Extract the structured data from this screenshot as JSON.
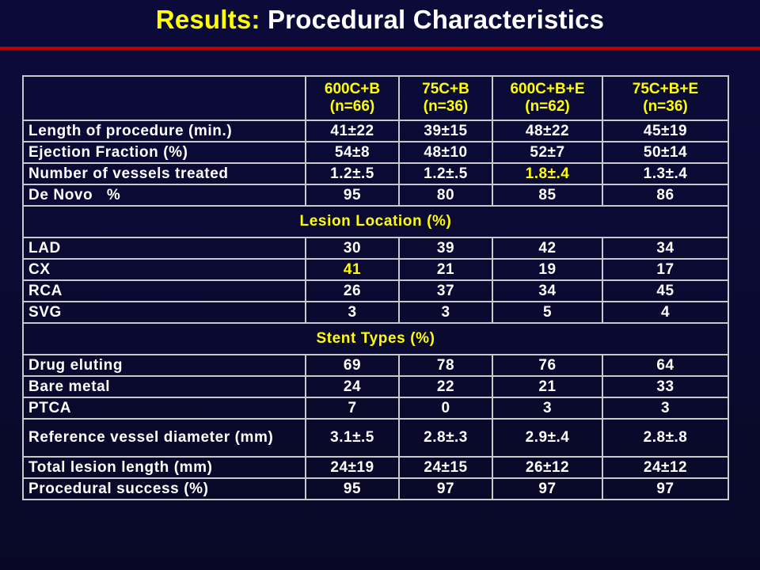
{
  "title": {
    "prefix": "Results:",
    "main": "Procedural Characteristics"
  },
  "colors": {
    "background": "#0a0a30",
    "accent_rule": "#c00000",
    "highlight": "#ffff00",
    "text": "#ffffff",
    "grid": "#c9c9c9"
  },
  "table": {
    "headers": [
      {
        "name": "600C+B",
        "n": "(n=66)"
      },
      {
        "name": "75C+B",
        "n": "(n=36)"
      },
      {
        "name": "600C+B+E",
        "n": "(n=62)"
      },
      {
        "name": "75C+B+E",
        "n": "(n=36)"
      }
    ],
    "group1": [
      {
        "label": "Length of procedure (min.)",
        "values": [
          "41±22",
          "39±15",
          "48±22",
          "45±19"
        ]
      },
      {
        "label": "Ejection Fraction (%)",
        "values": [
          "54±8",
          "48±10",
          "52±7",
          "50±14"
        ]
      },
      {
        "label": "Number of vessels treated",
        "values": [
          "1.2±.5",
          "1.2±.5",
          "1.8±.4",
          "1.3±.4"
        ]
      },
      {
        "label": "De Novo   %",
        "values": [
          "95",
          "80",
          "85",
          "86"
        ]
      }
    ],
    "section_lesion": "Lesion Location (%)",
    "lesion": [
      {
        "label": "LAD",
        "values": [
          "30",
          "39",
          "42",
          "34"
        ]
      },
      {
        "label": "CX",
        "values": [
          "41",
          "21",
          "19",
          "17"
        ]
      },
      {
        "label": "RCA",
        "values": [
          "26",
          "37",
          "34",
          "45"
        ]
      },
      {
        "label": "SVG",
        "values": [
          "3",
          "3",
          "5",
          "4"
        ]
      }
    ],
    "section_stent": "Stent Types (%)",
    "stent": [
      {
        "label": "Drug eluting",
        "values": [
          "69",
          "78",
          "76",
          "64"
        ]
      },
      {
        "label": "Bare metal",
        "values": [
          "24",
          "22",
          "21",
          "33"
        ]
      },
      {
        "label": "PTCA",
        "values": [
          "7",
          "0",
          "3",
          "3"
        ]
      },
      {
        "label": "Reference vessel diameter (mm)",
        "values": [
          "3.1±.5",
          "2.8±.3",
          "2.9±.4",
          "2.8±.8"
        ]
      },
      {
        "label": "Total lesion length (mm)",
        "values": [
          "24±19",
          "24±15",
          "26±12",
          "24±12"
        ]
      },
      {
        "label": "Procedural success (%)",
        "values": [
          "95",
          "97",
          "97",
          "97"
        ]
      }
    ]
  }
}
